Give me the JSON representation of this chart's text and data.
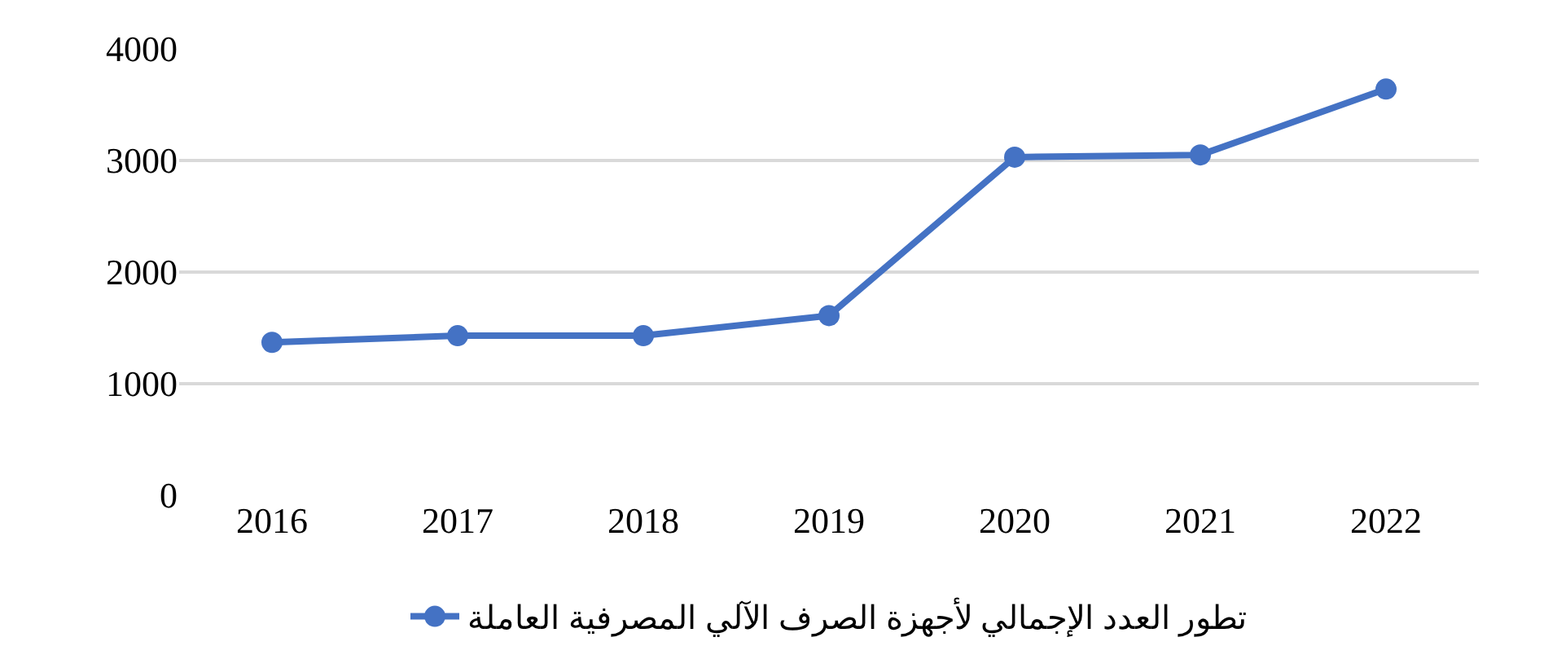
{
  "chart_data": {
    "type": "line",
    "categories": [
      "2016",
      "2017",
      "2018",
      "2019",
      "2020",
      "2021",
      "2022"
    ],
    "series": [
      {
        "name": "تطور العدد الإجمالي لأجهزة الصرف الآلي المصرفية العاملة",
        "color": "#4472c4",
        "values": [
          1370,
          1430,
          1430,
          1610,
          3030,
          3050,
          3640
        ]
      }
    ],
    "ylim": [
      0,
      4000
    ],
    "yticks": [
      0,
      1000,
      2000,
      3000,
      4000
    ],
    "grid": "y",
    "legend": "bottom",
    "marker": "circle",
    "line_style": "solid"
  }
}
